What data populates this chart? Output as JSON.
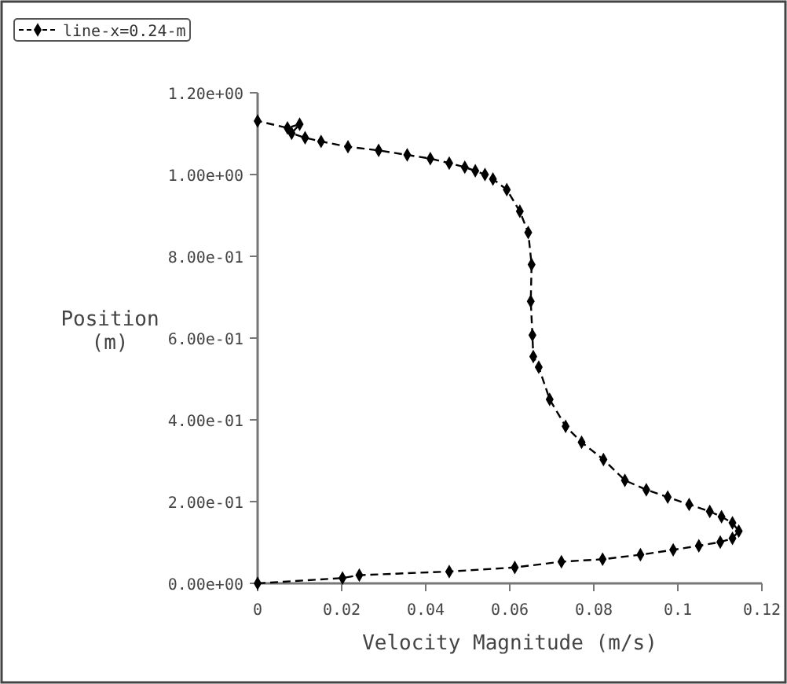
{
  "chart_data": {
    "type": "line",
    "xlabel": "Velocity Magnitude (m/s)",
    "ylabel": "Position (m)",
    "xlim": [
      0,
      0.12
    ],
    "xticks": [
      0,
      0.02,
      0.04,
      0.06,
      0.08,
      {
        "value": 0.1,
        "label": "0.1"
      },
      0.12
    ],
    "ylim": [
      0,
      1.2
    ],
    "yticks": [
      {
        "value": 0,
        "label": "0.00e+00"
      },
      {
        "value": 0.2,
        "label": "2.00e-01"
      },
      {
        "value": 0.4,
        "label": "4.00e-01"
      },
      {
        "value": 0.6,
        "label": "6.00e-01"
      },
      {
        "value": 0.8,
        "label": "8.00e-01"
      },
      {
        "value": 1.0,
        "label": "1.00e+00"
      },
      {
        "value": 1.2,
        "label": "1.20e+00"
      }
    ],
    "legend": "top left",
    "marker": "diamond",
    "line_style": "dashed",
    "grid": false,
    "series": [
      {
        "name": "line-x=0.24-m",
        "color": "#000000",
        "x": [
          0,
          0.0202,
          0.0242,
          0.0456,
          0.0612,
          0.0723,
          0.0821,
          0.0911,
          0.0989,
          0.105,
          0.1101,
          0.113,
          0.1145,
          0.113,
          0.1104,
          0.1076,
          0.1027,
          0.0976,
          0.0925,
          0.0874,
          0.0823,
          0.0771,
          0.0733,
          0.0695,
          0.0669,
          0.0656,
          0.0654,
          0.065,
          0.0652,
          0.0644,
          0.0624,
          0.0593,
          0.056,
          0.0541,
          0.0518,
          0.0493,
          0.0456,
          0.0411,
          0.0356,
          0.0288,
          0.0215,
          0.0151,
          0.0113,
          0.0081,
          0.01,
          0.0071,
          0
        ],
        "values": [
          0,
          0.013,
          0.02,
          0.029,
          0.039,
          0.053,
          0.059,
          0.07,
          0.082,
          0.092,
          0.101,
          0.11,
          0.128,
          0.148,
          0.163,
          0.176,
          0.193,
          0.211,
          0.229,
          0.252,
          0.303,
          0.345,
          0.384,
          0.45,
          0.529,
          0.555,
          0.607,
          0.69,
          0.78,
          0.858,
          0.91,
          0.963,
          0.989,
          1.0,
          1.009,
          1.018,
          1.028,
          1.039,
          1.048,
          1.059,
          1.068,
          1.081,
          1.09,
          1.101,
          1.123,
          1.114,
          1.131
        ]
      }
    ]
  }
}
